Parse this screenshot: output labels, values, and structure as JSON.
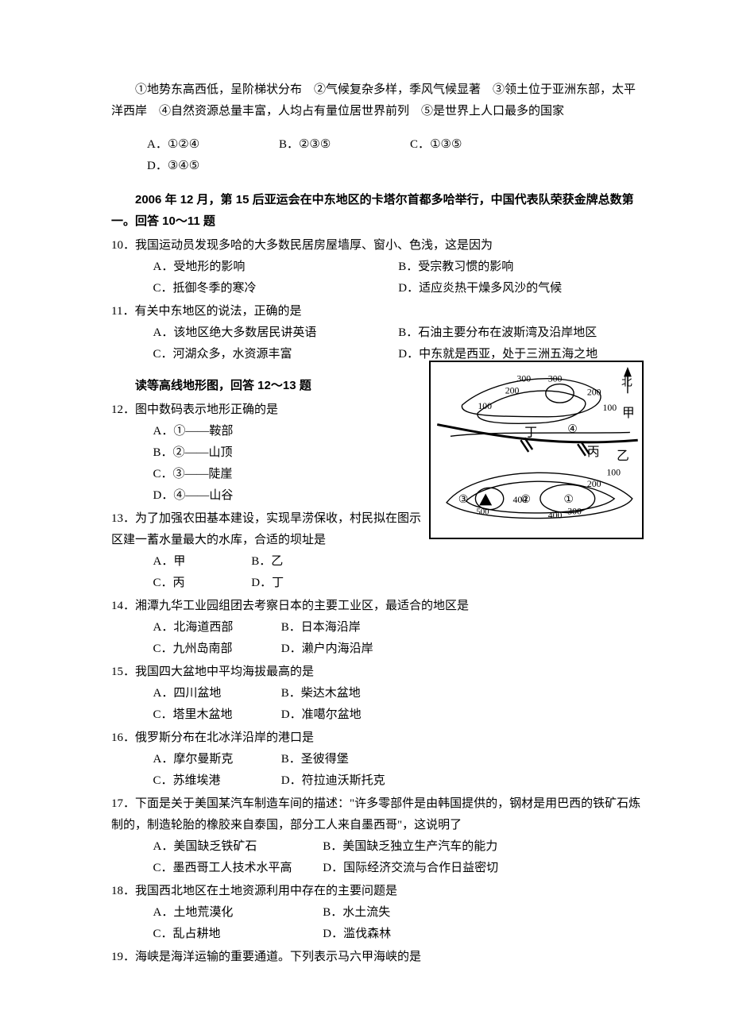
{
  "intro_lines": [
    "①地势东高西低，呈阶梯状分布　②气候复杂多样，季风气候显著　③领土位于亚洲东部，太平洋西岸　④自然资源总量丰富，人均占有量位居世界前列　⑤是世界上人口最多的国家"
  ],
  "intro_opts": {
    "A": "①②④",
    "B": "②③⑤",
    "C": "①③⑤",
    "D": "③④⑤"
  },
  "ctx_1": "2006 年 12 月，第 15 后亚运会在中东地区的卡塔尔首都多哈举行，中国代表队荣获金牌总数第一。回答 10～11 题",
  "q10": {
    "stem": "10．我国运动员发现多哈的大多数民居房屋墙厚、窗小、色浅，这是因为",
    "opts": {
      "A": "A．受地形的影响",
      "B": "B．受宗教习惯的影响",
      "C": "C．抵御冬季的寒冷",
      "D": "D．适应炎热干燥多风沙的气候"
    }
  },
  "q11": {
    "stem": "11．有关中东地区的说法，正确的是",
    "opts": {
      "A": "A．该地区绝大多数居民讲英语",
      "B": "B．石油主要分布在波斯湾及沿岸地区",
      "C": "C．河湖众多，水资源丰富",
      "D": "D．中东就是西亚，处于三洲五海之地"
    }
  },
  "ctx_2": "读等高线地形图，回答 12～13 题",
  "q12": {
    "stem": "12．图中数码表示地形正确的是",
    "opts": {
      "A": "A．①——鞍部",
      "B": "B．②——山顶",
      "C": "C．③——陡崖",
      "D": "D．④——山谷"
    }
  },
  "q13": {
    "stem": "13．为了加强农田基本建设，实现旱涝保收，村民拟在图示区建一蓄水量最大的水库，合适的坝址是",
    "opts": {
      "A": "A．甲",
      "B": "B．乙",
      "C": "C．丙",
      "D": "D．丁"
    }
  },
  "q14": {
    "stem": "14．湘潭九华工业园组团去考察日本的主要工业区，最适合的地区是",
    "opts": {
      "A": "A．北海道西部",
      "B": "B．日本海沿岸",
      "C": "C．九州岛南部",
      "D": "D．濑户内海沿岸"
    }
  },
  "q15": {
    "stem": "15．我国四大盆地中平均海拔最高的是",
    "opts": {
      "A": "A．四川盆地",
      "B": "B．柴达木盆地",
      "C": "C．塔里木盆地",
      "D": "D．准噶尔盆地"
    }
  },
  "q16": {
    "stem": "16．俄罗斯分布在北冰洋沿岸的港口是",
    "opts": {
      "A": "A．摩尔曼斯克",
      "B": "B．圣彼得堡",
      "C": "C．苏维埃港",
      "D": "D．符拉迪沃斯托克"
    }
  },
  "q17": {
    "stem": "17．下面是关于美国某汽车制造车间的描述：\"许多零部件是由韩国提供的，钢材是用巴西的铁矿石炼制的，制造轮胎的橡胶来自泰国，部分工人来自墨西哥\"，这说明了",
    "opts": {
      "A": "A．美国缺乏铁矿石",
      "B": "B．美国缺乏独立生产汽车的能力",
      "C": "C．墨西哥工人技术水平高",
      "D": "D．国际经济交流与合作日益密切"
    }
  },
  "q18": {
    "stem": "18．我国西北地区在土地资源利用中存在的主要问题是",
    "opts": {
      "A": "A．土地荒漠化",
      "B": "B．水土流失",
      "C": "C．乱占耕地",
      "D": "D．滥伐森林"
    }
  },
  "q19": {
    "stem": "19．海峡是海洋运输的重要通道。下列表示马六甲海峡的是"
  },
  "map": {
    "labels": {
      "north": "北",
      "jia": "甲",
      "yi": "乙",
      "bing": "丙",
      "ding": "丁",
      "c100": "100",
      "c200": "200",
      "c300": "300",
      "c400": "400",
      "c500": "500"
    },
    "markers": {
      "1": "①",
      "2": "②",
      "3": "③",
      "4": "④"
    },
    "colors": {
      "stroke": "#000000",
      "bg": "#ffffff",
      "text": "#000000"
    },
    "font_size": 12
  }
}
